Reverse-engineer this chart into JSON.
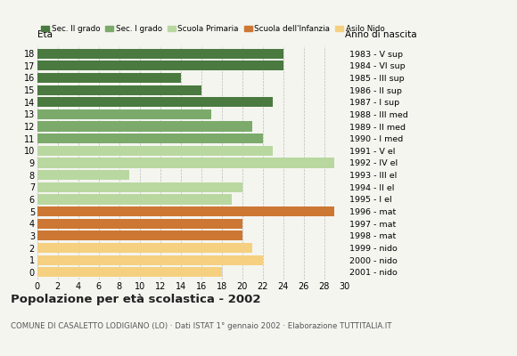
{
  "ages": [
    18,
    17,
    16,
    15,
    14,
    13,
    12,
    11,
    10,
    9,
    8,
    7,
    6,
    5,
    4,
    3,
    2,
    1,
    0
  ],
  "values": [
    24,
    24,
    14,
    16,
    23,
    17,
    21,
    22,
    23,
    29,
    9,
    20,
    19,
    29,
    20,
    20,
    21,
    22,
    18
  ],
  "categories": [
    "Sec. II grado",
    "Sec. II grado",
    "Sec. II grado",
    "Sec. II grado",
    "Sec. II grado",
    "Sec. I grado",
    "Sec. I grado",
    "Sec. I grado",
    "Scuola Primaria",
    "Scuola Primaria",
    "Scuola Primaria",
    "Scuola Primaria",
    "Scuola Primaria",
    "Scuola dell'Infanzia",
    "Scuola dell'Infanzia",
    "Scuola dell'Infanzia",
    "Asilo Nido",
    "Asilo Nido",
    "Asilo Nido"
  ],
  "right_labels": [
    "1983 - V sup",
    "1984 - VI sup",
    "1985 - III sup",
    "1986 - II sup",
    "1987 - I sup",
    "1988 - III med",
    "1989 - II med",
    "1990 - I med",
    "1991 - V el",
    "1992 - IV el",
    "1993 - III el",
    "1994 - II el",
    "1995 - I el",
    "1996 - mat",
    "1997 - mat",
    "1998 - mat",
    "1999 - nido",
    "2000 - nido",
    "2001 - nido"
  ],
  "colors": {
    "Sec. II grado": "#4a7a40",
    "Sec. I grado": "#7baa6b",
    "Scuola Primaria": "#b8d8a0",
    "Scuola dell'Infanzia": "#cc7733",
    "Asilo Nido": "#f5d080"
  },
  "legend_colors": [
    "#4a7a40",
    "#7baa6b",
    "#b8d8a0",
    "#cc7733",
    "#f5d080"
  ],
  "legend_labels": [
    "Sec. II grado",
    "Sec. I grado",
    "Scuola Primaria",
    "Scuola dell'Infanzia",
    "Asilo Nido"
  ],
  "title": "Popolazione per età scolastica - 2002",
  "subtitle": "COMUNE DI CASALETTO LODIGIANO (LO) · Dati ISTAT 1° gennaio 2002 · Elaborazione TUTTITALIA.IT",
  "xlabel_left": "Età",
  "xlabel_right": "Anno di nascita",
  "xlim": [
    0,
    30
  ],
  "xticks": [
    0,
    2,
    4,
    6,
    8,
    10,
    12,
    14,
    16,
    18,
    20,
    22,
    24,
    26,
    28,
    30
  ],
  "bg_color": "#f5f5f0",
  "grid_color": "#bbbbbb"
}
